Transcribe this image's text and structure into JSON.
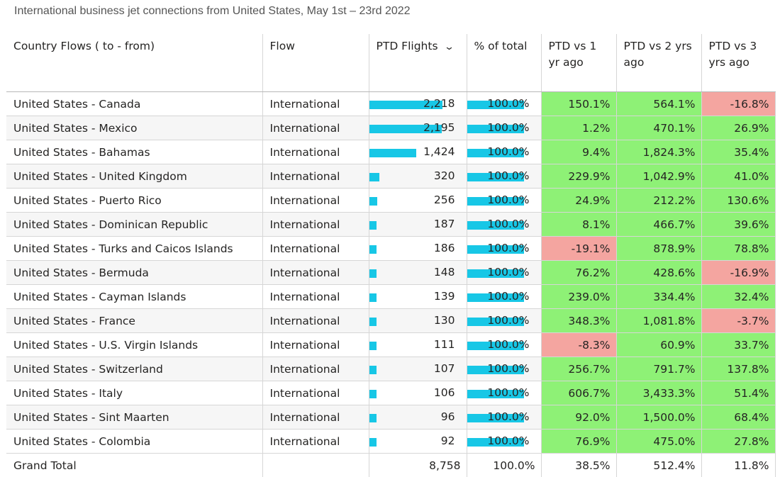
{
  "title": "International business jet connections from United States, May 1st – 23rd 2022",
  "chart_data": {
    "type": "table",
    "columns": [
      "Country Flows ( to - from)",
      "Flow",
      "PTD Flights",
      "% of total",
      "PTD vs 1 yr ago",
      "PTD vs 2 yrs ago",
      "PTD vs 3 yrs ago"
    ],
    "sorted_column": "PTD Flights",
    "sort_direction": "descending",
    "bar_color": "#17c7e6",
    "positive_color": "#8ef176",
    "negative_color": "#f4a5a0",
    "rows": [
      {
        "country": "United States - Canada",
        "flow": "International",
        "flights": "2,218",
        "flights_value": 2218,
        "pct": "100.0%",
        "pct_value": 100,
        "vs1": "150.1%",
        "vs2": "564.1%",
        "vs3": "-16.8%"
      },
      {
        "country": "United States - Mexico",
        "flow": "International",
        "flights": "2,195",
        "flights_value": 2195,
        "pct": "100.0%",
        "pct_value": 100,
        "vs1": "1.2%",
        "vs2": "470.1%",
        "vs3": "26.9%"
      },
      {
        "country": "United States - Bahamas",
        "flow": "International",
        "flights": "1,424",
        "flights_value": 1424,
        "pct": "100.0%",
        "pct_value": 100,
        "vs1": "9.4%",
        "vs2": "1,824.3%",
        "vs3": "35.4%"
      },
      {
        "country": "United States - United Kingdom",
        "flow": "International",
        "flights": "320",
        "flights_value": 320,
        "pct": "100.0%",
        "pct_value": 100,
        "vs1": "229.9%",
        "vs2": "1,042.9%",
        "vs3": "41.0%"
      },
      {
        "country": "United States - Puerto Rico",
        "flow": "International",
        "flights": "256",
        "flights_value": 256,
        "pct": "100.0%",
        "pct_value": 100,
        "vs1": "24.9%",
        "vs2": "212.2%",
        "vs3": "130.6%"
      },
      {
        "country": "United States - Dominican Republic",
        "flow": "International",
        "flights": "187",
        "flights_value": 187,
        "pct": "100.0%",
        "pct_value": 100,
        "vs1": "8.1%",
        "vs2": "466.7%",
        "vs3": "39.6%"
      },
      {
        "country": "United States - Turks and Caicos Islands",
        "flow": "International",
        "flights": "186",
        "flights_value": 186,
        "pct": "100.0%",
        "pct_value": 100,
        "vs1": "-19.1%",
        "vs2": "878.9%",
        "vs3": "78.8%"
      },
      {
        "country": "United States - Bermuda",
        "flow": "International",
        "flights": "148",
        "flights_value": 148,
        "pct": "100.0%",
        "pct_value": 100,
        "vs1": "76.2%",
        "vs2": "428.6%",
        "vs3": "-16.9%"
      },
      {
        "country": "United States - Cayman Islands",
        "flow": "International",
        "flights": "139",
        "flights_value": 139,
        "pct": "100.0%",
        "pct_value": 100,
        "vs1": "239.0%",
        "vs2": "334.4%",
        "vs3": "32.4%"
      },
      {
        "country": "United States - France",
        "flow": "International",
        "flights": "130",
        "flights_value": 130,
        "pct": "100.0%",
        "pct_value": 100,
        "vs1": "348.3%",
        "vs2": "1,081.8%",
        "vs3": "-3.7%"
      },
      {
        "country": "United States - U.S. Virgin Islands",
        "flow": "International",
        "flights": "111",
        "flights_value": 111,
        "pct": "100.0%",
        "pct_value": 100,
        "vs1": "-8.3%",
        "vs2": "60.9%",
        "vs3": "33.7%"
      },
      {
        "country": "United States - Switzerland",
        "flow": "International",
        "flights": "107",
        "flights_value": 107,
        "pct": "100.0%",
        "pct_value": 100,
        "vs1": "256.7%",
        "vs2": "791.7%",
        "vs3": "137.8%"
      },
      {
        "country": "United States - Italy",
        "flow": "International",
        "flights": "106",
        "flights_value": 106,
        "pct": "100.0%",
        "pct_value": 100,
        "vs1": "606.7%",
        "vs2": "3,433.3%",
        "vs3": "51.4%"
      },
      {
        "country": "United States - Sint Maarten",
        "flow": "International",
        "flights": "96",
        "flights_value": 96,
        "pct": "100.0%",
        "pct_value": 100,
        "vs1": "92.0%",
        "vs2": "1,500.0%",
        "vs3": "68.4%"
      },
      {
        "country": "United States - Colombia",
        "flow": "International",
        "flights": "92",
        "flights_value": 92,
        "pct": "100.0%",
        "pct_value": 100,
        "vs1": "76.9%",
        "vs2": "475.0%",
        "vs3": "27.8%"
      }
    ],
    "total": {
      "label": "Grand Total",
      "flow": "",
      "flights": "8,758",
      "pct": "100.0%",
      "vs1": "38.5%",
      "vs2": "512.4%",
      "vs3": "11.8%"
    }
  }
}
